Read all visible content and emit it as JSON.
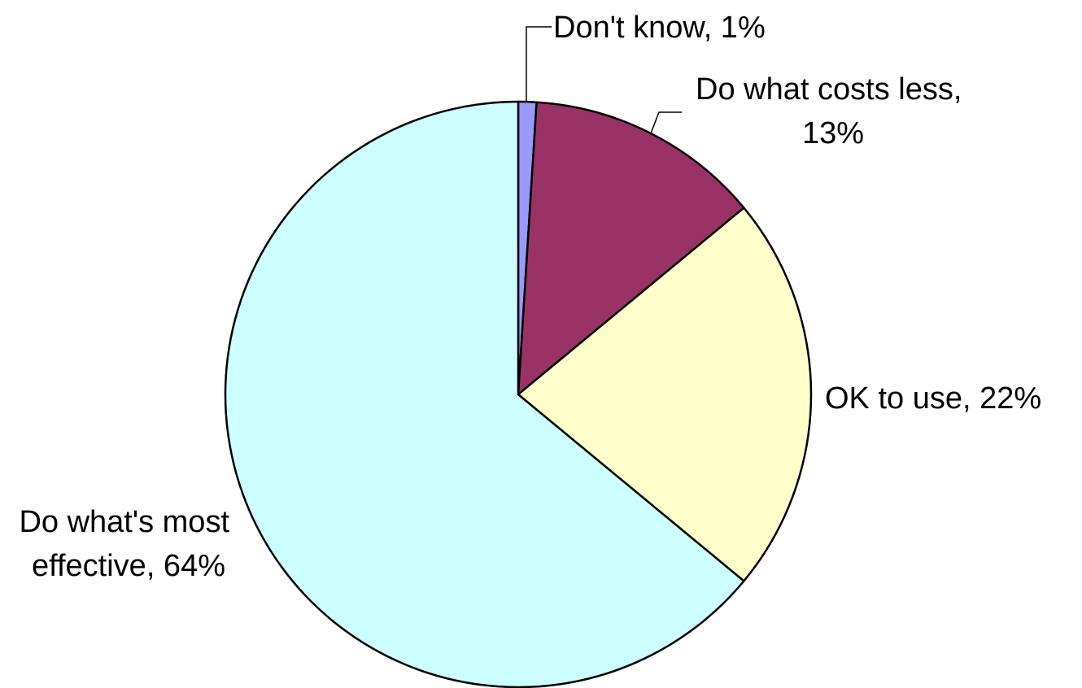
{
  "chart_data": {
    "type": "pie",
    "title": "",
    "slices": [
      {
        "label": "Don't know",
        "value": 1,
        "color": "#9999FF",
        "text_lines": [
          "Don't know, 1%"
        ]
      },
      {
        "label": "Do what costs less",
        "value": 13,
        "color": "#993366",
        "text_lines": [
          "Do what costs less,",
          "13%"
        ]
      },
      {
        "label": "OK to use",
        "value": 22,
        "color": "#FFFFCC",
        "text_lines": [
          "OK to use, 22%"
        ]
      },
      {
        "label": "Do what's most effective",
        "value": 64,
        "color": "#CCFFFF",
        "text_lines": [
          "Do what's most",
          "effective, 64%"
        ]
      }
    ],
    "start_angle": "12 o'clock",
    "direction": "clockwise",
    "legend": "none"
  }
}
